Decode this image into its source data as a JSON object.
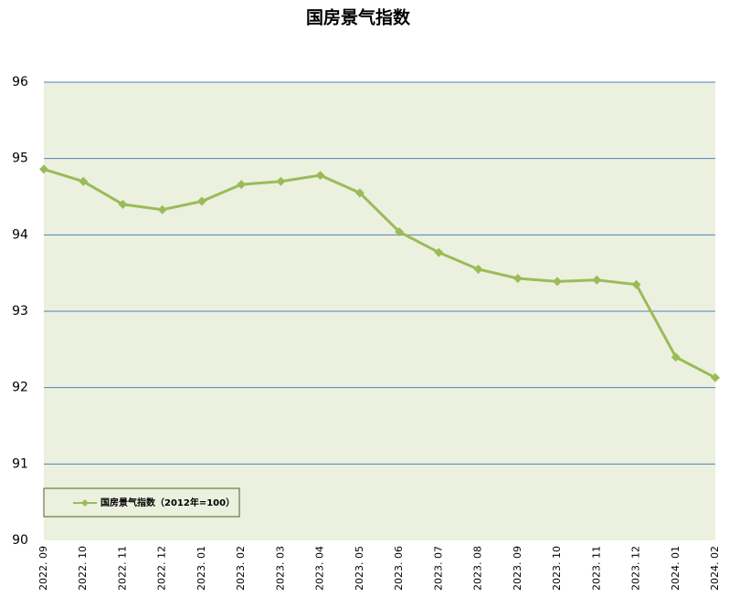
{
  "chart_data": {
    "type": "line",
    "title": "国房景气指数",
    "categories": [
      "2022. 09",
      "2022. 10",
      "2022. 11",
      "2022. 12",
      "2023. 01",
      "2023. 02",
      "2023. 03",
      "2023. 04",
      "2023. 05",
      "2023. 06",
      "2023. 07",
      "2023. 08",
      "2023. 09",
      "2023. 10",
      "2023. 11",
      "2023. 12",
      "2024. 01",
      "2024. 02"
    ],
    "series": [
      {
        "name": "国房景气指数（2012年=100）",
        "color": "#9bbb59",
        "values": [
          94.86,
          94.7,
          94.4,
          94.33,
          94.44,
          94.66,
          94.7,
          94.78,
          94.55,
          94.04,
          93.77,
          93.55,
          93.43,
          93.39,
          93.41,
          93.35,
          92.4,
          92.13
        ]
      }
    ],
    "ylim": [
      90,
      96
    ],
    "yticks": [
      90,
      91,
      92,
      93,
      94,
      95,
      96
    ],
    "grid": true,
    "legend": "lower left"
  }
}
